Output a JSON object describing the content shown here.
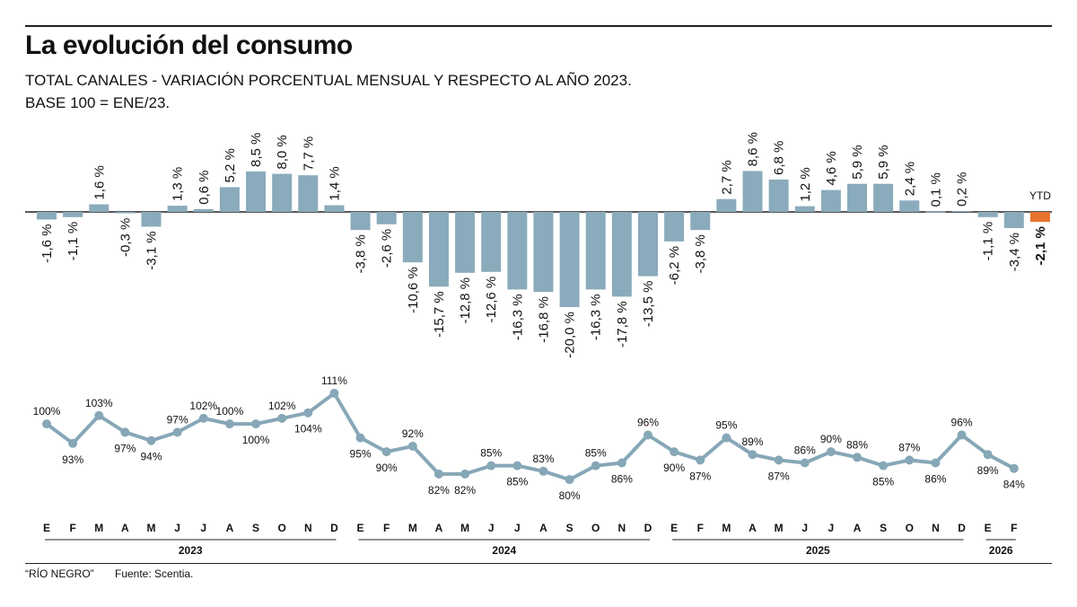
{
  "title": "La evolución del consumo",
  "subtitle_line1": "TOTAL CANALES - VARIACIÓN PORCENTUAL MENSUAL Y RESPECTO AL AÑO 2023.",
  "subtitle_line2": "BASE 100 = ENE/23.",
  "footer": {
    "source_brand": "“RÍO NEGRO”",
    "source": "Fuente: Scentia."
  },
  "colors": {
    "bar": "#8aabbb",
    "line": "#86a7b7",
    "ytd": "#e8742c",
    "text": "#111111"
  },
  "chart_data": [
    {
      "type": "bar",
      "unit": "%",
      "categories": [
        "E",
        "F",
        "M",
        "A",
        "M",
        "J",
        "J",
        "A",
        "S",
        "O",
        "N",
        "D",
        "E",
        "F",
        "M",
        "A",
        "M",
        "J",
        "J",
        "A",
        "S",
        "O",
        "N",
        "D",
        "E",
        "F",
        "M",
        "A",
        "M",
        "J",
        "J",
        "A",
        "S",
        "O",
        "N",
        "D",
        "E",
        "F"
      ],
      "years": [
        {
          "label": "2023",
          "months": 12
        },
        {
          "label": "2024",
          "months": 12
        },
        {
          "label": "2025",
          "months": 12
        },
        {
          "label": "2026",
          "months": 2
        }
      ],
      "values": [
        -1.6,
        -1.1,
        1.6,
        -0.3,
        -3.1,
        1.3,
        0.6,
        5.2,
        8.5,
        8.0,
        7.7,
        1.4,
        -3.8,
        -2.6,
        -10.6,
        -15.7,
        -12.8,
        -12.6,
        -16.3,
        -16.8,
        -20.0,
        -16.3,
        -17.8,
        -13.5,
        -6.2,
        -3.8,
        2.7,
        8.6,
        6.8,
        1.2,
        4.6,
        5.9,
        5.9,
        2.4,
        0.1,
        0.2,
        -1.1,
        -3.4
      ],
      "ytd": {
        "label": "YTD",
        "value": -2.1
      }
    },
    {
      "type": "line",
      "unit": "%",
      "values": [
        100,
        93,
        103,
        97,
        94,
        97,
        102,
        100,
        100,
        102,
        104,
        111,
        95,
        90,
        92,
        82,
        82,
        85,
        85,
        83,
        80,
        85,
        86,
        96,
        90,
        87,
        95,
        89,
        87,
        86,
        90,
        88,
        85,
        87,
        86,
        96,
        89,
        84
      ],
      "label_positions": [
        "above",
        "below",
        "above",
        "below",
        "below",
        "above",
        "above",
        "above",
        "below",
        "above",
        "below",
        "above",
        "below",
        "below",
        "above",
        "below",
        "below",
        "above",
        "below",
        "above",
        "below",
        "above",
        "below",
        "above",
        "below",
        "below",
        "above",
        "above",
        "below",
        "above",
        "above",
        "above",
        "below",
        "above",
        "below",
        "above",
        "below",
        "below"
      ]
    }
  ]
}
